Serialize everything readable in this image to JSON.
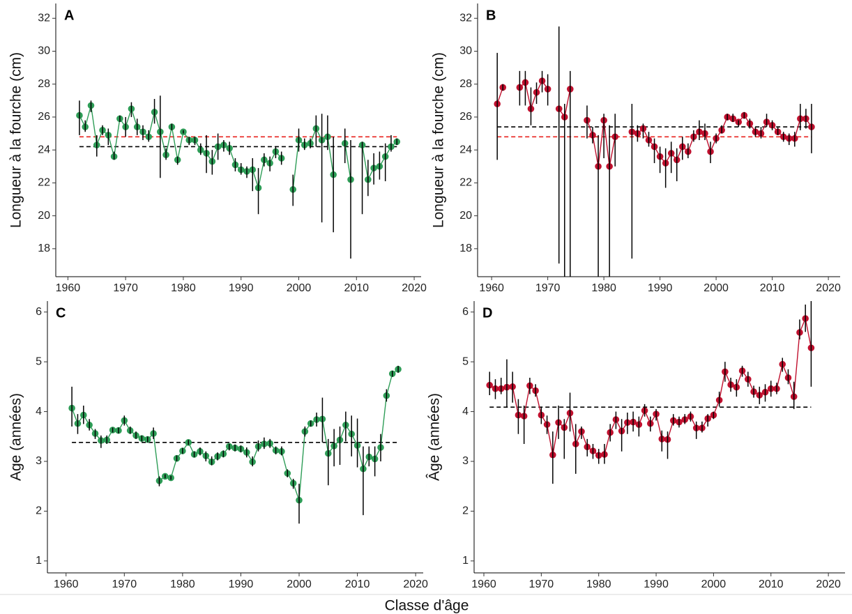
{
  "x_label": "Classe d'âge",
  "chart_data": [
    {
      "type": "line",
      "panel_label": "A",
      "y_label": "Longueur à la fourche (cm)",
      "color": "#2e9d57",
      "xlim": [
        1957.9,
        2021.2
      ],
      "ylim": [
        16.3,
        32.9
      ],
      "xticks": [
        1960,
        1970,
        1980,
        1990,
        2000,
        2010,
        2020
      ],
      "yticks": [
        18,
        20,
        22,
        24,
        26,
        28,
        30,
        32
      ],
      "x": [
        1962,
        1963,
        1964,
        1965,
        1966,
        1967,
        1968,
        1969,
        1970,
        1971,
        1972,
        1973,
        1974,
        1975,
        1976,
        1977,
        1978,
        1979,
        1980,
        1981,
        1982,
        1983,
        1984,
        1985,
        1986,
        1987,
        1988,
        1989,
        1990,
        1991,
        1992,
        1993,
        1994,
        1995,
        1996,
        1997,
        1998,
        1999,
        2000,
        2001,
        2002,
        2003,
        2004,
        2005,
        2006,
        2007,
        2008,
        2009,
        2010,
        2011,
        2012,
        2013,
        2014,
        2015,
        2016,
        2017
      ],
      "values": [
        26.1,
        25.4,
        26.7,
        24.3,
        25.2,
        24.9,
        23.6,
        25.9,
        25.4,
        26.5,
        25.4,
        25.1,
        24.8,
        26.3,
        25.1,
        23.7,
        25.4,
        23.4,
        25.1,
        24.6,
        24.6,
        24.0,
        23.8,
        23.3,
        24.2,
        24.3,
        24.1,
        23.1,
        22.8,
        22.7,
        22.8,
        21.7,
        23.4,
        23.2,
        23.9,
        23.5,
        null,
        21.6,
        24.6,
        24.3,
        24.4,
        25.3,
        24.6,
        24.8,
        22.5,
        null,
        24.4,
        22.2,
        null,
        24.3,
        22.2,
        22.9,
        23.0,
        23.6,
        24.2,
        24.5
      ],
      "ci_low": [
        24.9,
        25.1,
        26.3,
        23.6,
        24.9,
        24.3,
        23.4,
        25.7,
        24.8,
        26.0,
        24.9,
        24.6,
        24.5,
        25.6,
        22.3,
        23.4,
        25.2,
        23.1,
        25.0,
        24.3,
        24.3,
        23.7,
        22.6,
        22.5,
        23.4,
        23.9,
        23.7,
        22.7,
        22.5,
        22.3,
        21.5,
        20.1,
        23.0,
        22.7,
        23.5,
        23.1,
        null,
        20.6,
        23.9,
        24.0,
        24.1,
        24.2,
        19.6,
        24.0,
        19.0,
        null,
        23.2,
        17.4,
        null,
        20.1,
        21.2,
        21.9,
        22.2,
        22.1,
        23.9,
        24.3
      ],
      "ci_high": [
        27.0,
        25.8,
        27.0,
        24.9,
        25.5,
        25.3,
        23.9,
        26.1,
        26.0,
        26.9,
        25.9,
        25.5,
        25.2,
        27.1,
        27.3,
        24.1,
        25.6,
        23.6,
        25.2,
        24.8,
        24.8,
        24.4,
        24.9,
        24.0,
        25.0,
        24.6,
        24.5,
        23.5,
        23.2,
        23.0,
        23.5,
        22.9,
        23.8,
        23.6,
        24.2,
        23.9,
        null,
        22.5,
        25.3,
        24.7,
        24.7,
        26.1,
        26.2,
        26.1,
        24.8,
        null,
        25.3,
        24.6,
        null,
        24.5,
        23.4,
        23.8,
        23.9,
        24.4,
        24.9,
        24.7
      ],
      "reference_lines": [
        {
          "value": 24.8,
          "color": "#e8211c"
        },
        {
          "value": 24.2,
          "color": "#000000"
        }
      ]
    },
    {
      "type": "line",
      "panel_label": "B",
      "y_label": "Longueur à la fourche (cm)",
      "color": "#c0102e",
      "xlim": [
        1957.5,
        2022.1
      ],
      "ylim": [
        16.3,
        32.9
      ],
      "xticks": [
        1960,
        1970,
        1980,
        1990,
        2000,
        2010,
        2020
      ],
      "yticks": [
        18,
        20,
        22,
        24,
        26,
        28,
        30,
        32
      ],
      "x": [
        1961,
        1962,
        1963,
        1964,
        1965,
        1966,
        1967,
        1968,
        1969,
        1970,
        1971,
        1972,
        1973,
        1974,
        1975,
        1976,
        1977,
        1978,
        1979,
        1980,
        1981,
        1982,
        1983,
        1984,
        1985,
        1986,
        1987,
        1988,
        1989,
        1990,
        1991,
        1992,
        1993,
        1994,
        1995,
        1996,
        1997,
        1998,
        1999,
        2000,
        2001,
        2002,
        2003,
        2004,
        2005,
        2006,
        2007,
        2008,
        2009,
        2010,
        2011,
        2012,
        2013,
        2014,
        2015,
        2016,
        2017
      ],
      "values": [
        26.8,
        27.8,
        null,
        null,
        27.8,
        28.1,
        26.5,
        27.5,
        28.2,
        27.7,
        null,
        26.5,
        26.0,
        27.7,
        null,
        null,
        25.8,
        24.9,
        23.0,
        25.8,
        23.0,
        24.8,
        null,
        null,
        25.1,
        25.0,
        25.3,
        24.6,
        24.2,
        23.6,
        23.2,
        23.8,
        23.4,
        24.2,
        23.9,
        24.8,
        25.1,
        25.0,
        23.9,
        24.7,
        25.2,
        26.0,
        25.9,
        25.7,
        26.1,
        25.6,
        25.1,
        25.0,
        25.7,
        25.5,
        25.1,
        24.8,
        24.7,
        24.7,
        25.9,
        25.9,
        25.4
      ],
      "ci_low": [
        23.4,
        27.6,
        null,
        null,
        26.7,
        26.7,
        25.5,
        26.8,
        27.5,
        26.7,
        null,
        17.1,
        16.3,
        16.3,
        null,
        null,
        24.7,
        24.4,
        16.3,
        23.5,
        16.3,
        23.0,
        null,
        null,
        17.4,
        24.5,
        24.7,
        24.2,
        23.2,
        22.6,
        21.7,
        22.6,
        22.1,
        23.4,
        23.5,
        24.5,
        24.6,
        24.6,
        23.2,
        24.4,
        25.0,
        25.8,
        25.7,
        25.4,
        25.9,
        25.3,
        24.8,
        24.7,
        25.4,
        25.2,
        24.9,
        24.5,
        24.3,
        24.2,
        25.2,
        25.3,
        23.8
      ],
      "ci_high": [
        29.9,
        28.0,
        null,
        null,
        28.8,
        28.8,
        27.8,
        28.1,
        28.8,
        28.6,
        null,
        31.5,
        26.8,
        28.8,
        null,
        null,
        26.7,
        25.4,
        24.9,
        26.2,
        25.5,
        26.2,
        null,
        null,
        26.8,
        25.5,
        25.6,
        25.1,
        24.7,
        24.2,
        24.1,
        24.5,
        24.1,
        24.8,
        24.4,
        25.2,
        25.8,
        25.6,
        24.5,
        25.0,
        25.5,
        26.2,
        26.2,
        25.8,
        26.3,
        25.9,
        25.4,
        25.4,
        26.2,
        25.8,
        25.4,
        25.1,
        25.0,
        25.1,
        26.8,
        26.5,
        26.8
      ],
      "reference_lines": [
        {
          "value": 25.4,
          "color": "#000000"
        },
        {
          "value": 24.8,
          "color": "#e8211c"
        }
      ]
    },
    {
      "type": "line",
      "panel_label": "C",
      "y_label": "Age (années)",
      "color": "#2e9d57",
      "xlim": [
        1956.8,
        2021.3
      ],
      "ylim": [
        0.76,
        6.22
      ],
      "xticks": [
        1960,
        1970,
        1980,
        1990,
        2000,
        2010,
        2020
      ],
      "yticks": [
        1,
        2,
        3,
        4,
        5,
        6
      ],
      "x": [
        1961,
        1962,
        1963,
        1964,
        1965,
        1966,
        1967,
        1968,
        1969,
        1970,
        1971,
        1972,
        1973,
        1974,
        1975,
        1976,
        1977,
        1978,
        1979,
        1980,
        1981,
        1982,
        1983,
        1984,
        1985,
        1986,
        1987,
        1988,
        1989,
        1990,
        1991,
        1992,
        1993,
        1994,
        1995,
        1996,
        1997,
        1998,
        1999,
        2000,
        2001,
        2002,
        2003,
        2004,
        2005,
        2006,
        2007,
        2008,
        2009,
        2010,
        2011,
        2012,
        2013,
        2014,
        2015,
        2016,
        2017
      ],
      "values": [
        4.07,
        3.76,
        3.93,
        3.73,
        3.56,
        3.42,
        3.43,
        3.63,
        3.62,
        3.82,
        3.62,
        3.52,
        3.46,
        3.44,
        3.56,
        2.61,
        2.7,
        2.67,
        3.06,
        3.21,
        3.38,
        3.14,
        3.2,
        3.11,
        2.99,
        3.1,
        3.15,
        3.3,
        3.27,
        3.25,
        3.18,
        2.99,
        3.3,
        3.35,
        3.36,
        3.22,
        3.2,
        2.76,
        2.56,
        2.22,
        3.6,
        3.76,
        3.84,
        3.85,
        3.16,
        3.31,
        3.43,
        3.73,
        3.55,
        3.32,
        2.85,
        3.09,
        3.05,
        3.28,
        4.32,
        4.76,
        4.85
      ],
      "ci_low": [
        3.7,
        3.55,
        3.75,
        3.62,
        3.45,
        3.27,
        3.35,
        3.58,
        3.56,
        3.72,
        3.55,
        3.45,
        3.4,
        3.38,
        3.45,
        2.5,
        2.66,
        2.63,
        3.0,
        3.15,
        3.33,
        3.08,
        3.12,
        3.0,
        2.92,
        3.02,
        3.08,
        3.22,
        3.2,
        3.18,
        3.08,
        2.9,
        3.2,
        3.25,
        3.27,
        3.14,
        3.12,
        2.68,
        2.45,
        1.75,
        3.5,
        3.7,
        3.7,
        3.38,
        2.52,
        2.9,
        2.93,
        3.4,
        3.1,
        2.88,
        1.92,
        2.9,
        2.7,
        3.0,
        4.2,
        4.7,
        4.78
      ],
      "ci_high": [
        4.5,
        3.95,
        4.12,
        3.85,
        3.65,
        3.52,
        3.52,
        3.68,
        3.68,
        3.92,
        3.7,
        3.6,
        3.52,
        3.5,
        3.68,
        2.7,
        2.74,
        2.71,
        3.12,
        3.27,
        3.43,
        3.2,
        3.28,
        3.2,
        3.1,
        3.18,
        3.22,
        3.35,
        3.34,
        3.32,
        3.28,
        3.1,
        3.42,
        3.48,
        3.45,
        3.3,
        3.3,
        2.84,
        2.65,
        2.55,
        3.7,
        3.82,
        3.98,
        4.28,
        3.45,
        3.65,
        3.7,
        4.0,
        3.92,
        3.86,
        3.3,
        3.3,
        3.3,
        3.55,
        4.45,
        4.82,
        4.92
      ],
      "reference_lines": [
        {
          "value": 3.38,
          "color": "#000000"
        }
      ]
    },
    {
      "type": "line",
      "panel_label": "D",
      "y_label": "Âge (années)",
      "color": "#c0102e",
      "xlim": [
        1958.3,
        2022.9
      ],
      "ylim": [
        0.76,
        6.22
      ],
      "xticks": [
        1960,
        1970,
        1980,
        1990,
        2000,
        2010,
        2020
      ],
      "yticks": [
        1,
        2,
        3,
        4,
        5,
        6
      ],
      "x": [
        1961,
        1962,
        1963,
        1964,
        1965,
        1966,
        1967,
        1968,
        1969,
        1970,
        1971,
        1972,
        1973,
        1974,
        1975,
        1976,
        1977,
        1978,
        1979,
        1980,
        1981,
        1982,
        1983,
        1984,
        1985,
        1986,
        1987,
        1988,
        1989,
        1990,
        1991,
        1992,
        1993,
        1994,
        1995,
        1996,
        1997,
        1998,
        1999,
        2000,
        2001,
        2002,
        2003,
        2004,
        2005,
        2006,
        2007,
        2008,
        2009,
        2010,
        2011,
        2012,
        2013,
        2014,
        2015,
        2016,
        2017
      ],
      "values": [
        4.53,
        4.46,
        4.46,
        4.49,
        4.5,
        3.93,
        3.91,
        4.52,
        4.42,
        3.93,
        3.74,
        3.13,
        3.78,
        3.68,
        3.97,
        3.35,
        3.6,
        3.29,
        3.21,
        3.12,
        3.14,
        3.58,
        3.84,
        3.61,
        3.78,
        3.79,
        3.74,
        4.02,
        3.76,
        3.95,
        3.45,
        3.44,
        3.82,
        3.79,
        3.84,
        3.9,
        3.67,
        3.67,
        3.86,
        3.93,
        4.23,
        4.8,
        4.54,
        4.49,
        4.82,
        4.65,
        4.4,
        4.33,
        4.39,
        4.46,
        4.46,
        4.95,
        4.68,
        4.3,
        5.59,
        5.87,
        5.28
      ],
      "ci_low": [
        4.33,
        4.25,
        4.35,
        4.08,
        4.18,
        3.55,
        3.35,
        4.35,
        4.3,
        3.75,
        3.55,
        2.55,
        3.45,
        3.05,
        3.6,
        2.75,
        3.45,
        3.1,
        3.05,
        2.95,
        2.95,
        3.4,
        3.65,
        3.2,
        3.55,
        3.6,
        3.5,
        3.9,
        3.6,
        3.82,
        3.2,
        3.05,
        3.72,
        3.68,
        3.75,
        3.8,
        3.45,
        3.58,
        3.7,
        3.85,
        4.1,
        4.6,
        4.4,
        4.3,
        4.7,
        4.5,
        4.28,
        4.15,
        4.2,
        4.3,
        4.35,
        4.8,
        4.55,
        4.05,
        5.45,
        5.6,
        4.5
      ],
      "ci_high": [
        4.8,
        4.65,
        4.68,
        5.05,
        4.8,
        4.25,
        4.12,
        4.68,
        4.55,
        4.1,
        3.92,
        3.6,
        4.12,
        3.85,
        4.38,
        3.75,
        3.7,
        3.45,
        3.35,
        3.25,
        3.35,
        3.75,
        4.0,
        3.85,
        3.98,
        4.0,
        3.9,
        4.15,
        3.9,
        4.05,
        3.62,
        3.6,
        3.95,
        3.9,
        3.95,
        4.0,
        3.8,
        3.8,
        3.95,
        4.0,
        4.4,
        5.0,
        4.68,
        4.65,
        4.92,
        4.8,
        4.52,
        4.5,
        4.55,
        4.62,
        4.58,
        5.08,
        4.85,
        4.6,
        5.85,
        6.15,
        6.22
      ],
      "reference_lines": [
        {
          "value": 4.09,
          "color": "#000000"
        }
      ]
    }
  ]
}
